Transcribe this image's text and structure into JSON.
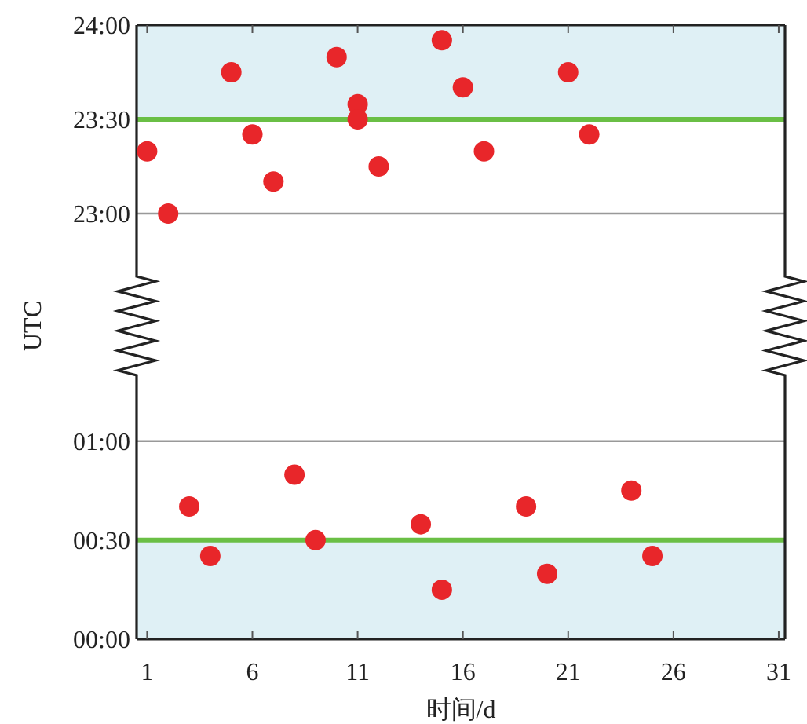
{
  "chart_data": [
    {
      "type": "scatter",
      "ylabel": "UTC",
      "xlim": [
        0.5,
        31.3
      ],
      "xticks": [
        1,
        6,
        11,
        16,
        21,
        26,
        31
      ],
      "ylim": [
        22.7,
        24
      ],
      "yticks": [
        {
          "value": 23,
          "label": "23:00"
        },
        {
          "value": 23.5,
          "label": "23:30"
        },
        {
          "value": 24,
          "label": "24:00"
        }
      ],
      "tick_labels": "y",
      "marker": "circle",
      "series": [
        {
          "color": "#e8262a",
          "x": [
            1,
            2,
            5,
            6,
            7,
            10,
            11,
            11,
            12,
            15,
            16,
            17,
            21,
            22
          ],
          "values": [
            23.33,
            23.0,
            23.75,
            23.42,
            23.17,
            23.83,
            23.58,
            23.5,
            23.25,
            23.92,
            23.67,
            23.33,
            23.75,
            23.42
          ]
        }
      ],
      "ref_lines": [
        {
          "axis": "y",
          "value": 23.5,
          "color": "#6abf45"
        },
        {
          "axis": "y",
          "value": 23,
          "color": "#999999"
        }
      ],
      "bands": [
        {
          "axis": "y",
          "from": 23.5,
          "to": 24,
          "color": "#dff0f5"
        }
      ]
    },
    {
      "type": "scatter",
      "xlabel": "时间/d",
      "xlim": [
        0.5,
        31.3
      ],
      "xticks": [
        1,
        6,
        11,
        16,
        21,
        26,
        31
      ],
      "ylim": [
        0,
        1.3
      ],
      "yticks": [
        {
          "value": 0,
          "label": "00:00"
        },
        {
          "value": 0.5,
          "label": "00:30"
        },
        {
          "value": 1,
          "label": "01:00"
        }
      ],
      "marker": "circle",
      "series": [
        {
          "color": "#e8262a",
          "x": [
            3,
            4,
            8,
            9,
            14,
            15,
            19,
            20,
            24,
            25
          ],
          "values": [
            0.67,
            0.42,
            0.83,
            0.5,
            0.58,
            0.25,
            0.67,
            0.33,
            0.75,
            0.42
          ]
        }
      ],
      "ref_lines": [
        {
          "axis": "y",
          "value": 0.5,
          "color": "#6abf45"
        },
        {
          "axis": "y",
          "value": 1,
          "color": "#999999"
        }
      ],
      "bands": [
        {
          "axis": "y",
          "from": 0,
          "to": 0.5,
          "color": "#dff0f5"
        }
      ]
    }
  ]
}
